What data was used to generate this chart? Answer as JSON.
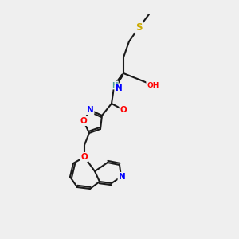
{
  "bg_color": "#efefef",
  "bond_color": "#1a1a1a",
  "bond_lw": 1.5,
  "atom_colors": {
    "N": "#0000ff",
    "O": "#ff0000",
    "S": "#ccaa00",
    "H_label": "#4a9a9a",
    "C": "#1a1a1a"
  },
  "font_size": 7.5,
  "font_size_small": 6.5
}
